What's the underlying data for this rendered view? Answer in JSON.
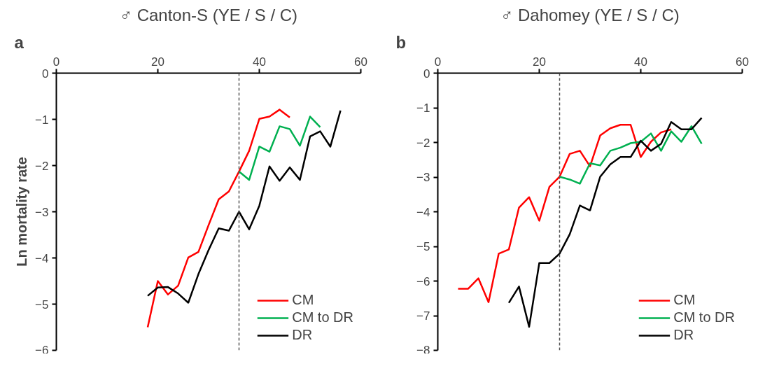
{
  "chart_data": [
    {
      "type": "line",
      "title": "♂ Canton-S (YE / S / C)",
      "ylabel": "Ln mortality rate",
      "annotations": [
        "a"
      ],
      "xlim": [
        0,
        60
      ],
      "xticks": [
        0,
        20,
        40,
        60
      ],
      "ylim": [
        -6,
        0
      ],
      "yticks": [
        -6,
        -5,
        -4,
        -3,
        -2,
        -1,
        0
      ],
      "legend": "bottom right",
      "grid": false,
      "line_style": "solid",
      "ref_lines": [
        {
          "axis": "x",
          "value": 36,
          "color": "#555555",
          "line_style": "dashed"
        }
      ],
      "series": [
        {
          "name": "CM",
          "color": "#ff0000",
          "x": [
            18,
            20,
            22,
            24,
            26,
            28,
            30,
            32,
            34,
            36,
            38,
            40,
            42,
            44,
            46
          ],
          "values": [
            -5.5,
            -4.5,
            -4.79,
            -4.6,
            -3.99,
            -3.87,
            -3.29,
            -2.73,
            -2.56,
            -2.13,
            -1.68,
            -0.99,
            -0.94,
            -0.79,
            -0.96
          ]
        },
        {
          "name": "CM to DR",
          "color": "#00b050",
          "x": [
            36,
            38,
            40,
            42,
            44,
            46,
            48,
            50,
            52
          ],
          "values": [
            -2.13,
            -2.31,
            -1.59,
            -1.7,
            -1.15,
            -1.21,
            -1.57,
            -0.94,
            -1.17
          ]
        },
        {
          "name": "DR",
          "color": "#000000",
          "x": [
            18,
            20,
            22,
            24,
            26,
            28,
            30,
            32,
            34,
            36,
            38,
            40,
            42,
            44,
            46,
            48,
            50,
            52,
            54,
            56
          ],
          "values": [
            -4.82,
            -4.64,
            -4.63,
            -4.77,
            -4.97,
            -4.35,
            -3.83,
            -3.36,
            -3.41,
            -3.0,
            -3.38,
            -2.87,
            -2.02,
            -2.33,
            -2.04,
            -2.31,
            -1.37,
            -1.26,
            -1.59,
            -0.81
          ]
        }
      ]
    },
    {
      "type": "line",
      "title": "♂ Dahomey (YE / S / C)",
      "annotations": [
        "b"
      ],
      "xlim": [
        0,
        60
      ],
      "xticks": [
        0,
        20,
        40,
        60
      ],
      "ylim": [
        -8,
        0
      ],
      "yticks": [
        -8,
        -7,
        -6,
        -5,
        -4,
        -3,
        -2,
        -1,
        0
      ],
      "legend": "bottom right",
      "grid": false,
      "line_style": "solid",
      "ref_lines": [
        {
          "axis": "x",
          "value": 24,
          "color": "#555555",
          "line_style": "dashed"
        }
      ],
      "series": [
        {
          "name": "CM",
          "color": "#ff0000",
          "x": [
            4,
            6,
            8,
            10,
            12,
            14,
            16,
            18,
            20,
            22,
            24,
            26,
            28,
            30,
            32,
            34,
            36,
            38,
            40,
            42,
            44,
            46
          ],
          "values": [
            -6.22,
            -6.22,
            -5.92,
            -6.61,
            -5.21,
            -5.09,
            -3.88,
            -3.58,
            -4.26,
            -3.28,
            -2.99,
            -2.33,
            -2.24,
            -2.69,
            -1.8,
            -1.59,
            -1.49,
            -1.49,
            -2.42,
            -1.98,
            -1.71,
            -1.62
          ]
        },
        {
          "name": "CM to DR",
          "color": "#00b050",
          "x": [
            24,
            26,
            28,
            30,
            32,
            34,
            36,
            38,
            40,
            42,
            44,
            46,
            48,
            50,
            52
          ],
          "values": [
            -2.99,
            -3.07,
            -3.19,
            -2.6,
            -2.66,
            -2.24,
            -2.15,
            -2.02,
            -1.98,
            -1.74,
            -2.24,
            -1.68,
            -1.98,
            -1.53,
            -2.04
          ]
        },
        {
          "name": "DR",
          "color": "#000000",
          "x": [
            14,
            16,
            18,
            20,
            22,
            24,
            26,
            28,
            30,
            32,
            34,
            36,
            38,
            40,
            42,
            44,
            46,
            48,
            50,
            52
          ],
          "values": [
            -6.63,
            -6.16,
            -7.32,
            -5.48,
            -5.48,
            -5.21,
            -4.65,
            -3.82,
            -3.96,
            -2.99,
            -2.63,
            -2.42,
            -2.42,
            -1.95,
            -2.24,
            -2.04,
            -1.41,
            -1.62,
            -1.62,
            -1.29
          ]
        }
      ]
    }
  ]
}
